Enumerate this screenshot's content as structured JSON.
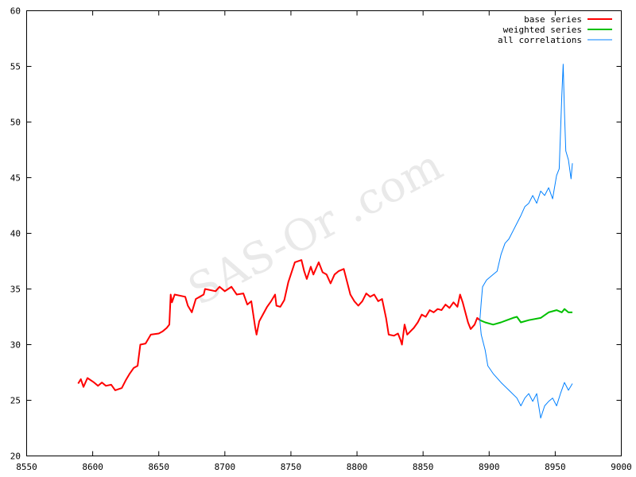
{
  "chart_data": {
    "type": "line",
    "title": "",
    "xlabel": "",
    "ylabel": "",
    "xlim": [
      8550,
      9000
    ],
    "ylim": [
      20,
      60
    ],
    "xticks": [
      8550,
      8600,
      8650,
      8700,
      8750,
      8800,
      8850,
      8900,
      8950,
      9000
    ],
    "yticks": [
      20,
      25,
      30,
      35,
      40,
      45,
      50,
      55,
      60
    ],
    "grid": false,
    "legend": "top-right",
    "watermark": "SAS-Or .com",
    "series": [
      {
        "name": "base series",
        "color": "#ff0000",
        "width": 2,
        "segments": [
          [
            [
              8589,
              26.5
            ],
            [
              8591,
              26.9
            ],
            [
              8593,
              26.2
            ],
            [
              8596,
              27.0
            ],
            [
              8601,
              26.6
            ],
            [
              8604,
              26.3
            ],
            [
              8607,
              26.6
            ],
            [
              8610,
              26.3
            ],
            [
              8614,
              26.4
            ],
            [
              8617,
              25.9
            ],
            [
              8622,
              26.1
            ],
            [
              8625,
              26.8
            ],
            [
              8628,
              27.4
            ],
            [
              8631,
              27.9
            ],
            [
              8634,
              28.1
            ],
            [
              8636,
              30.0
            ],
            [
              8640,
              30.1
            ],
            [
              8644,
              30.9
            ],
            [
              8650,
              31.0
            ],
            [
              8653,
              31.2
            ],
            [
              8656,
              31.5
            ],
            [
              8658,
              31.8
            ],
            [
              8659,
              34.5
            ],
            [
              8660,
              33.8
            ],
            [
              8662,
              34.5
            ],
            [
              8670,
              34.3
            ],
            [
              8672,
              33.5
            ],
            [
              8675,
              32.9
            ],
            [
              8678,
              34.1
            ],
            [
              8684,
              34.5
            ],
            [
              8685,
              35.0
            ],
            [
              8693,
              34.8
            ],
            [
              8696,
              35.2
            ],
            [
              8700,
              34.8
            ],
            [
              8705,
              35.2
            ],
            [
              8709,
              34.5
            ],
            [
              8714,
              34.6
            ],
            [
              8717,
              33.6
            ],
            [
              8720,
              33.9
            ],
            [
              8723,
              31.5
            ],
            [
              8724,
              30.9
            ],
            [
              8726,
              32.1
            ],
            [
              8732,
              33.4
            ],
            [
              8735,
              33.9
            ],
            [
              8738,
              34.5
            ],
            [
              8739,
              33.5
            ],
            [
              8742,
              33.4
            ],
            [
              8745,
              34.0
            ],
            [
              8748,
              35.6
            ],
            [
              8753,
              37.4
            ],
            [
              8758,
              37.6
            ],
            [
              8760,
              36.6
            ],
            [
              8762,
              35.9
            ],
            [
              8765,
              37.0
            ],
            [
              8767,
              36.3
            ],
            [
              8771,
              37.4
            ],
            [
              8774,
              36.5
            ],
            [
              8777,
              36.3
            ],
            [
              8780,
              35.5
            ],
            [
              8783,
              36.3
            ],
            [
              8786,
              36.6
            ],
            [
              8790,
              36.8
            ],
            [
              8795,
              34.5
            ],
            [
              8798,
              33.9
            ],
            [
              8801,
              33.5
            ],
            [
              8804,
              33.9
            ],
            [
              8807,
              34.6
            ],
            [
              8810,
              34.3
            ],
            [
              8813,
              34.5
            ],
            [
              8816,
              33.9
            ],
            [
              8819,
              34.1
            ],
            [
              8822,
              32.4
            ],
            [
              8824,
              30.9
            ],
            [
              8828,
              30.8
            ],
            [
              8831,
              31.0
            ],
            [
              8833,
              30.4
            ],
            [
              8834,
              30.0
            ],
            [
              8836,
              31.8
            ],
            [
              8838,
              30.9
            ],
            [
              8843,
              31.5
            ],
            [
              8846,
              32.0
            ],
            [
              8849,
              32.7
            ],
            [
              8852,
              32.5
            ],
            [
              8855,
              33.1
            ],
            [
              8858,
              32.9
            ],
            [
              8861,
              33.2
            ],
            [
              8864,
              33.1
            ],
            [
              8867,
              33.6
            ],
            [
              8870,
              33.3
            ],
            [
              8873,
              33.8
            ],
            [
              8876,
              33.4
            ],
            [
              8878,
              34.5
            ],
            [
              8880,
              33.8
            ],
            [
              8884,
              32.0
            ],
            [
              8886,
              31.4
            ],
            [
              8889,
              31.8
            ],
            [
              8891,
              32.4
            ],
            [
              8893,
              32.2
            ]
          ]
        ]
      },
      {
        "name": "weighted series",
        "color": "#00c000",
        "width": 2,
        "segments": [
          [
            [
              8893,
              32.2
            ],
            [
              8897,
              32.0
            ],
            [
              8903,
              31.8
            ],
            [
              8909,
              32.0
            ],
            [
              8918,
              32.4
            ],
            [
              8921,
              32.5
            ],
            [
              8924,
              32.0
            ],
            [
              8930,
              32.2
            ],
            [
              8939,
              32.4
            ],
            [
              8945,
              32.9
            ],
            [
              8951,
              33.1
            ],
            [
              8955,
              32.9
            ],
            [
              8957,
              33.2
            ],
            [
              8960,
              32.9
            ],
            [
              8963,
              32.9
            ]
          ]
        ]
      },
      {
        "name": "all correlations",
        "color": "#0080ff",
        "width": 1,
        "segments": [
          [
            [
              8893,
              32.2
            ],
            [
              8894,
              33.8
            ],
            [
              8895,
              35.2
            ],
            [
              8898,
              35.8
            ],
            [
              8903,
              36.3
            ],
            [
              8906,
              36.6
            ],
            [
              8909,
              38.1
            ],
            [
              8912,
              39.1
            ],
            [
              8915,
              39.5
            ],
            [
              8918,
              40.2
            ],
            [
              8921,
              40.9
            ],
            [
              8924,
              41.6
            ],
            [
              8927,
              42.4
            ],
            [
              8930,
              42.7
            ],
            [
              8933,
              43.4
            ],
            [
              8936,
              42.7
            ],
            [
              8939,
              43.8
            ],
            [
              8942,
              43.4
            ],
            [
              8945,
              44.1
            ],
            [
              8948,
              43.1
            ],
            [
              8951,
              45.2
            ],
            [
              8953,
              45.8
            ],
            [
              8955,
              52.4
            ],
            [
              8956,
              55.2
            ],
            [
              8957,
              50.9
            ],
            [
              8958,
              47.4
            ],
            [
              8960,
              46.6
            ],
            [
              8962,
              44.9
            ],
            [
              8963,
              46.3
            ]
          ],
          [
            [
              8893,
              32.2
            ],
            [
              8894,
              30.9
            ],
            [
              8897,
              29.5
            ],
            [
              8899,
              28.1
            ],
            [
              8903,
              27.4
            ],
            [
              8909,
              26.6
            ],
            [
              8915,
              25.9
            ],
            [
              8921,
              25.2
            ],
            [
              8924,
              24.5
            ],
            [
              8927,
              25.2
            ],
            [
              8930,
              25.6
            ],
            [
              8933,
              24.9
            ],
            [
              8936,
              25.6
            ],
            [
              8939,
              23.4
            ],
            [
              8942,
              24.5
            ],
            [
              8945,
              24.9
            ],
            [
              8948,
              25.2
            ],
            [
              8951,
              24.5
            ],
            [
              8954,
              25.6
            ],
            [
              8957,
              26.6
            ],
            [
              8960,
              25.9
            ],
            [
              8963,
              26.5
            ]
          ]
        ]
      }
    ]
  }
}
